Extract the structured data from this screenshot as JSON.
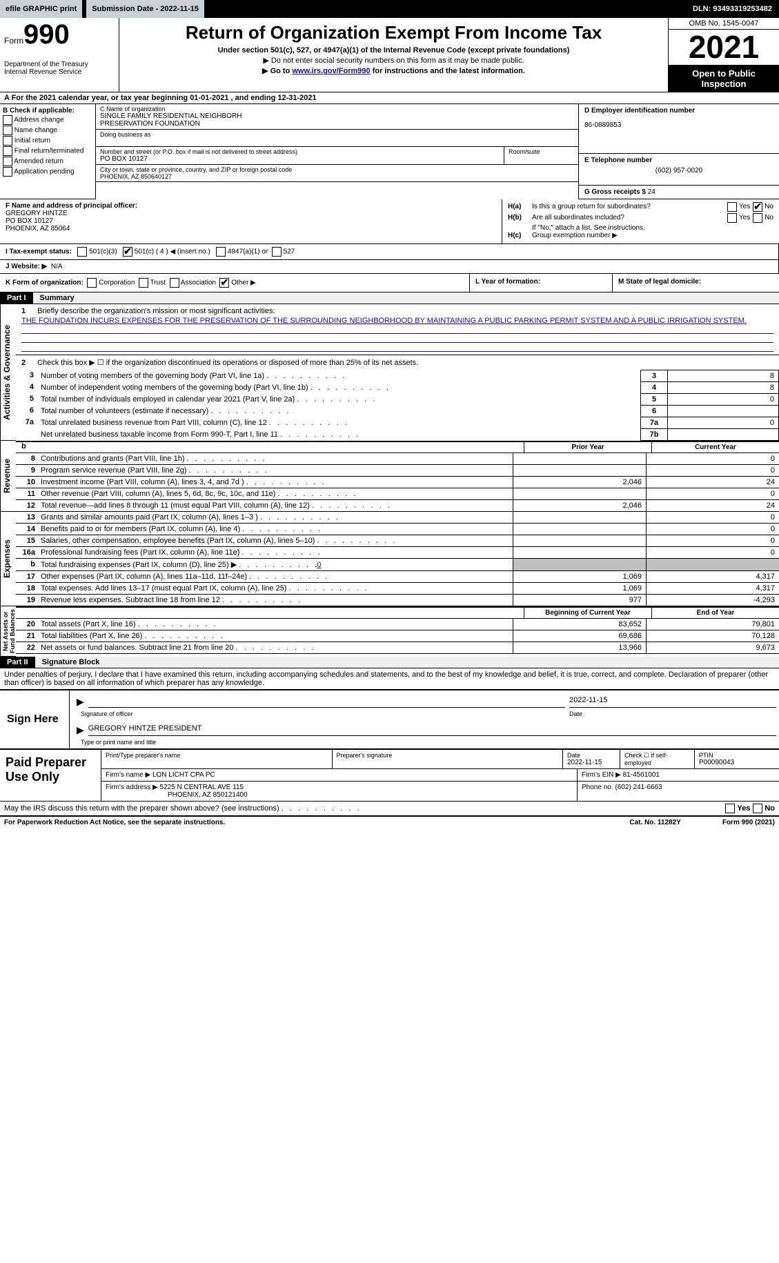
{
  "topbar": {
    "efile": "efile GRAPHIC print",
    "submission": "Submission Date - 2022-11-15",
    "dln": "DLN: 93493319253482"
  },
  "header": {
    "form_word": "Form",
    "form_no": "990",
    "title": "Return of Organization Exempt From Income Tax",
    "sub1": "Under section 501(c), 527, or 4947(a)(1) of the Internal Revenue Code (except private foundations)",
    "sub2": "▶ Do not enter social security numbers on this form as it may be made public.",
    "sub3_pre": "▶ Go to ",
    "sub3_link": "www.irs.gov/Form990",
    "sub3_post": " for instructions and the latest information.",
    "dept": "Department of the Treasury\nInternal Revenue Service",
    "omb": "OMB No. 1545-0047",
    "year": "2021",
    "inspect": "Open to Public Inspection"
  },
  "rowA": "A For the 2021 calendar year, or tax year beginning 01-01-2021    , and ending 12-31-2021",
  "boxB": {
    "title": "B Check if applicable:",
    "opts": [
      "Address change",
      "Name change",
      "Initial return",
      "Final return/terminated",
      "Amended return",
      "Application pending"
    ]
  },
  "boxC": {
    "name_lbl": "C Name of organization",
    "name": "SINGLE FAMILY RESIDENTIAL NEIGHBORH\nPRESERVATION FOUNDATION",
    "dba_lbl": "Doing business as",
    "addr_lbl": "Number and street (or P.O. box if mail is not delivered to street address)",
    "addr": "PO BOX 10127",
    "room_lbl": "Room/suite",
    "city_lbl": "City or town, state or province, country, and ZIP or foreign postal code",
    "city": "PHOENIX, AZ  850640127"
  },
  "boxD": {
    "lbl": "D Employer identification number",
    "val": "86-0889853"
  },
  "boxE": {
    "lbl": "E Telephone number",
    "val": "(602) 957-0020"
  },
  "boxG": {
    "lbl": "G Gross receipts $",
    "val": "24"
  },
  "boxF": {
    "lbl": "F  Name and address of principal officer:",
    "name": "GREGORY HINTZE",
    "addr1": "PO BOX 10127",
    "addr2": "PHOENIX, AZ  85064"
  },
  "boxH": {
    "a_lbl": "H(a)",
    "a_q": "Is this a group return for subordinates?",
    "b_lbl": "H(b)",
    "b_q": "Are all subordinates included?",
    "b_note": "If \"No,\" attach a list. See instructions.",
    "c_lbl": "H(c)",
    "c_q": "Group exemption number ▶",
    "yes": "Yes",
    "no": "No"
  },
  "boxI": {
    "lbl": "I   Tax-exempt status:",
    "o1": "501(c)(3)",
    "o2": "501(c) ( 4 ) ◀ (insert no.)",
    "o3": "4947(a)(1) or",
    "o4": "527"
  },
  "boxJ": {
    "lbl": "J   Website: ▶",
    "val": "N/A"
  },
  "boxK": {
    "lbl": "K Form of organization:",
    "o1": "Corporation",
    "o2": "Trust",
    "o3": "Association",
    "o4": "Other ▶"
  },
  "boxL": "L Year of formation:",
  "boxM": "M State of legal domicile:",
  "partI": {
    "tag": "Part I",
    "title": "Summary"
  },
  "sideTabs": {
    "ag": "Activities & Governance",
    "rev": "Revenue",
    "exp": "Expenses",
    "na": "Net Assets or\nFund Balances"
  },
  "q1": {
    "num": "1",
    "text": "Briefly describe the organization's mission or most significant activities:",
    "mission": "THE FOUNDATION INCURS EXPENSES FOR THE PRESERVATION OF THE SURROUNDING NEIGHBORHOOD BY MAINTAINING A PUBLIC PARKING PERMIT SYSTEM AND A PUBLIC IRRIGATION SYSTEM."
  },
  "q2": {
    "num": "2",
    "text": "Check this box ▶ ☐  if the organization discontinued its operations or disposed of more than 25% of its net assets."
  },
  "lines_ag": [
    {
      "no": "3",
      "desc": "Number of voting members of the governing body (Part VI, line 1a)",
      "box": "3",
      "val": "8"
    },
    {
      "no": "4",
      "desc": "Number of independent voting members of the governing body (Part VI, line 1b)",
      "box": "4",
      "val": "8"
    },
    {
      "no": "5",
      "desc": "Total number of individuals employed in calendar year 2021 (Part V, line 2a)",
      "box": "5",
      "val": "0"
    },
    {
      "no": "6",
      "desc": "Total number of volunteers (estimate if necessary)",
      "box": "6",
      "val": ""
    },
    {
      "no": "7a",
      "desc": "Total unrelated business revenue from Part VIII, column (C), line 12",
      "box": "7a",
      "val": "0"
    },
    {
      "no": "",
      "desc": "Net unrelated business taxable income from Form 990-T, Part I, line 11",
      "box": "7b",
      "val": ""
    }
  ],
  "fin_cols": {
    "b": "b",
    "py": "Prior Year",
    "cy": "Current Year"
  },
  "lines_rev": [
    {
      "no": "8",
      "desc": "Contributions and grants (Part VIII, line 1h)",
      "py": "",
      "cy": "0"
    },
    {
      "no": "9",
      "desc": "Program service revenue (Part VIII, line 2g)",
      "py": "",
      "cy": "0"
    },
    {
      "no": "10",
      "desc": "Investment income (Part VIII, column (A), lines 3, 4, and 7d )",
      "py": "2,046",
      "cy": "24"
    },
    {
      "no": "11",
      "desc": "Other revenue (Part VIII, column (A), lines 5, 6d, 8c, 9c, 10c, and 11e)",
      "py": "",
      "cy": "0"
    },
    {
      "no": "12",
      "desc": "Total revenue—add lines 8 through 11 (must equal Part VIII, column (A), line 12)",
      "py": "2,046",
      "cy": "24"
    }
  ],
  "lines_exp": [
    {
      "no": "13",
      "desc": "Grants and similar amounts paid (Part IX, column (A), lines 1–3 )",
      "py": "",
      "cy": "0"
    },
    {
      "no": "14",
      "desc": "Benefits paid to or for members (Part IX, column (A), line 4)",
      "py": "",
      "cy": "0"
    },
    {
      "no": "15",
      "desc": "Salaries, other compensation, employee benefits (Part IX, column (A), lines 5–10)",
      "py": "",
      "cy": "0"
    },
    {
      "no": "16a",
      "desc": "Professional fundraising fees (Part IX, column (A), line 11e)",
      "py": "",
      "cy": "0"
    },
    {
      "no": "b",
      "desc": "Total fundraising expenses (Part IX, column (D), line 25) ▶",
      "link": "0",
      "py": "GREY",
      "cy": "GREY"
    },
    {
      "no": "17",
      "desc": "Other expenses (Part IX, column (A), lines 11a–11d, 11f–24e)",
      "py": "1,069",
      "cy": "4,317"
    },
    {
      "no": "18",
      "desc": "Total expenses. Add lines 13–17 (must equal Part IX, column (A), line 25)",
      "py": "1,069",
      "cy": "4,317"
    },
    {
      "no": "19",
      "desc": "Revenue less expenses. Subtract line 18 from line 12",
      "py": "977",
      "cy": "-4,293"
    }
  ],
  "fin_cols2": {
    "py": "Beginning of Current Year",
    "cy": "End of Year"
  },
  "lines_na": [
    {
      "no": "20",
      "desc": "Total assets (Part X, line 16)",
      "py": "83,652",
      "cy": "79,801"
    },
    {
      "no": "21",
      "desc": "Total liabilities (Part X, line 26)",
      "py": "69,686",
      "cy": "70,128"
    },
    {
      "no": "22",
      "desc": "Net assets or fund balances. Subtract line 21 from line 20",
      "py": "13,966",
      "cy": "9,673"
    }
  ],
  "partII": {
    "tag": "Part II",
    "title": "Signature Block"
  },
  "sig_decl": "Under penalties of perjury, I declare that I have examined this return, including accompanying schedules and statements, and to the best of my knowledge and belief, it is true, correct, and complete. Declaration of preparer (other than officer) is based on all information of which preparer has any knowledge.",
  "sign": {
    "here": "Sign Here",
    "sig_lbl": "Signature of officer",
    "date_lbl": "Date",
    "date": "2022-11-15",
    "name": "GREGORY HINTZE  PRESIDENT",
    "name_lbl": "Type or print name and title"
  },
  "prep": {
    "lbl": "Paid Preparer Use Only",
    "h1": "Print/Type preparer's name",
    "h2": "Preparer's signature",
    "h3_lbl": "Date",
    "h3": "2022-11-15",
    "h4_lbl": "Check ☐ if self-employed",
    "h5_lbl": "PTIN",
    "h5": "P00090043",
    "firm_lbl": "Firm's name      ▶",
    "firm": "LON LICHT CPA PC",
    "ein_lbl": "Firm's EIN ▶",
    "ein": "81-4561001",
    "addr_lbl": "Firm's address ▶",
    "addr1": "5225 N CENTRAL AVE 115",
    "addr2": "PHOENIX, AZ  850121400",
    "phone_lbl": "Phone no.",
    "phone": "(602) 241-6663"
  },
  "bottom": {
    "q": "May the IRS discuss this return with the preparer shown above? (see instructions)",
    "yes": "Yes",
    "no": "No"
  },
  "footer": {
    "l": "For Paperwork Reduction Act Notice, see the separate instructions.",
    "m": "Cat. No. 11282Y",
    "r": "Form 990 (2021)"
  }
}
